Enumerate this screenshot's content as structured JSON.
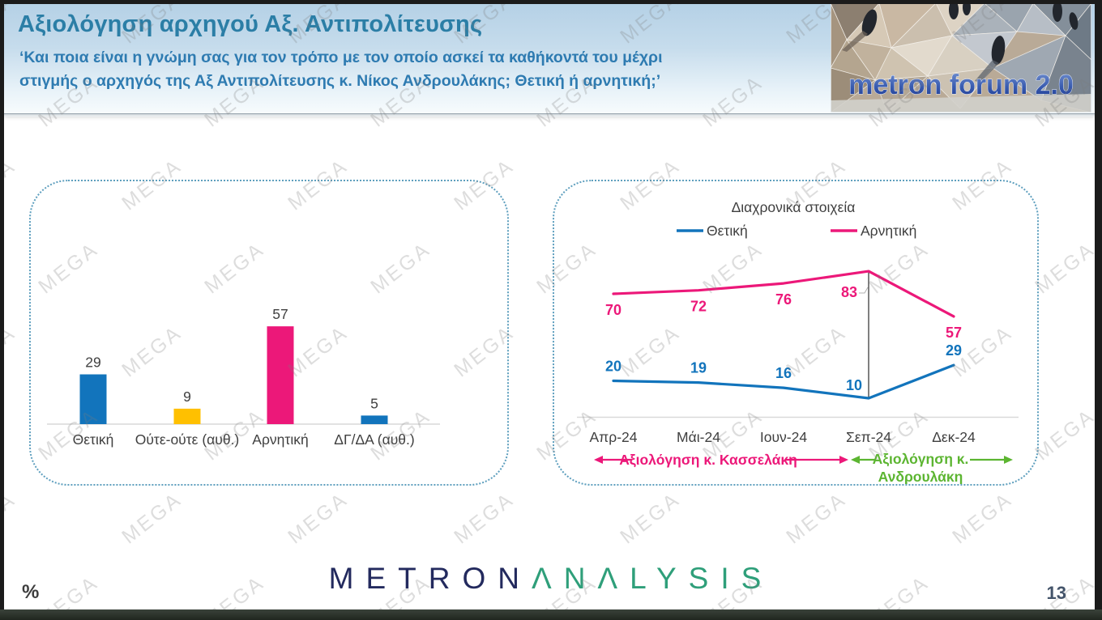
{
  "header": {
    "title": "Αξιολόγηση αρχηγού Αξ. Αντιπολίτευσης",
    "subtitle_line1": "‘Και ποια είναι η γνώμη σας για τον τρόπο με τον οποίο ασκεί τα καθήκοντά του μέχρι",
    "subtitle_line2": "στιγμής ο αρχηγός της Αξ Αντιπολίτευσης κ. Νίκος Ανδρουλάκης; Θετική ή αρνητική;’",
    "logo_text": "metron forum 2.0"
  },
  "watermark": {
    "text": "MEGA"
  },
  "chart_data": [
    {
      "type": "bar",
      "title": "",
      "categories": [
        "Θετική",
        "Ούτε-ούτε (αυθ.)",
        "Αρνητική",
        "ΔΓ/ΔΑ (αυθ.)"
      ],
      "values": [
        29,
        9,
        57,
        5
      ],
      "bar_colors": [
        "#1274bc",
        "#ffc000",
        "#ec1879",
        "#1274bc"
      ],
      "label_color": "#404040",
      "axis_color": "#d9d9d9",
      "ylim": [
        0,
        90
      ],
      "grid": false,
      "data_labels": true
    },
    {
      "type": "line",
      "title": "Διαχρονικά στοιχεία",
      "categories": [
        "Απρ-24",
        "Μάι-24",
        "Ιουν-24",
        "Σεπ-24",
        "Δεκ-24"
      ],
      "series": [
        {
          "name": "Θετική",
          "color": "#1274bc",
          "values": [
            20,
            19,
            16,
            10,
            29
          ]
        },
        {
          "name": "Αρνητική",
          "color": "#ec1879",
          "values": [
            70,
            72,
            76,
            83,
            57
          ]
        }
      ],
      "legend_position": "top",
      "grid": false,
      "ylim": [
        0,
        90
      ],
      "axis_color": "#d9d9d9",
      "divider": {
        "at_category": "Σεπ-24",
        "color": "#000000"
      },
      "annotations": {
        "left_label": "Αξιολόγηση κ. Κασσελάκη",
        "left_color": "#ec1879",
        "right_label_line1": "Αξιολόγηση κ.",
        "right_label_line2": "Ανδρουλάκη",
        "right_color": "#5cb531"
      }
    }
  ],
  "footer": {
    "brand_left": "METRON",
    "brand_right": "ΛNΛLYSIS",
    "unit_label": "%",
    "page_number": "13"
  }
}
